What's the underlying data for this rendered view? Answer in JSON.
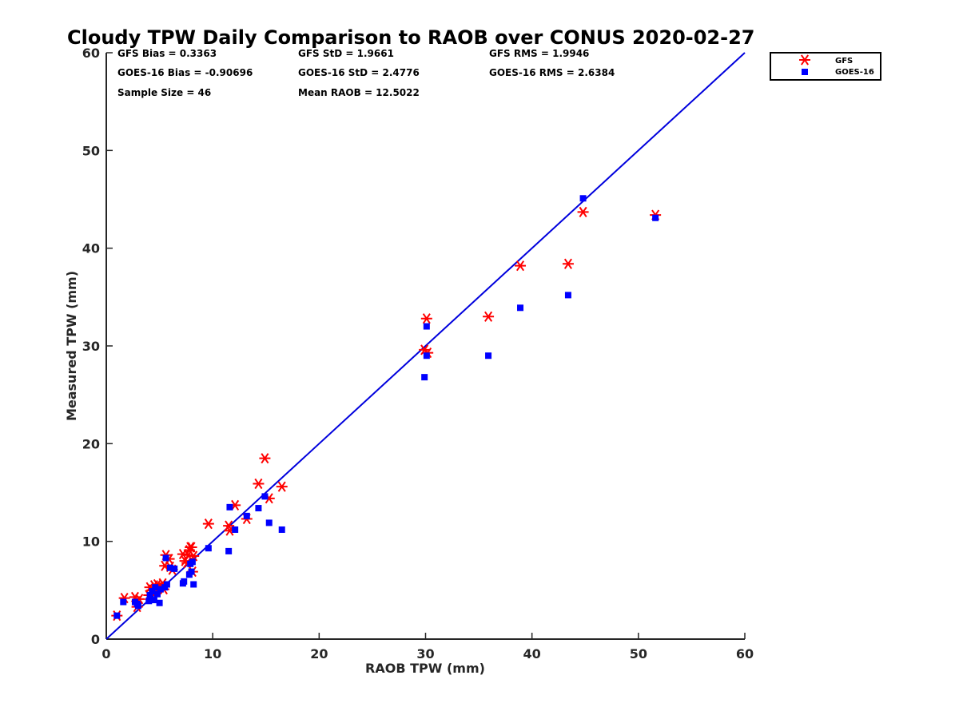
{
  "chart_data": {
    "type": "scatter",
    "title": "Cloudy TPW Daily Comparison to RAOB over CONUS 2020-02-27",
    "xlabel": "RAOB TPW (mm)",
    "ylabel": "Measured TPW (mm)",
    "xlim": [
      0,
      60
    ],
    "ylim": [
      0,
      60
    ],
    "xticks": [
      "0",
      "10",
      "20",
      "30",
      "40",
      "50",
      "60"
    ],
    "yticks": [
      "0",
      "10",
      "20",
      "30",
      "40",
      "50",
      "60"
    ],
    "grid": false,
    "legend_position": "top-right",
    "reference_line": {
      "x": [
        0,
        60
      ],
      "y": [
        0,
        60
      ],
      "color": "#0000dd"
    },
    "stats": [
      [
        "GFS Bias = 0.3363",
        "GFS StD = 1.9661",
        "GFS RMS = 1.9946"
      ],
      [
        "GOES-16 Bias = -0.90696",
        "GOES-16 StD = 2.4776",
        "GOES-16 RMS = 2.6384"
      ],
      [
        "Sample Size = 46",
        "Mean RAOB = 12.5022",
        ""
      ]
    ],
    "series": [
      {
        "name": "GFS",
        "marker": "asterisk",
        "color": "#ff0000",
        "points": [
          [
            1.0,
            2.4
          ],
          [
            1.7,
            4.2
          ],
          [
            2.7,
            4.3
          ],
          [
            2.9,
            3.3
          ],
          [
            3.1,
            4.1
          ],
          [
            4.0,
            4.5
          ],
          [
            4.1,
            5.3
          ],
          [
            4.3,
            5.0
          ],
          [
            4.5,
            5.5
          ],
          [
            4.8,
            5.6
          ],
          [
            5.0,
            5.4
          ],
          [
            5.3,
            5.7
          ],
          [
            5.4,
            5.1
          ],
          [
            5.5,
            7.5
          ],
          [
            5.6,
            8.6
          ],
          [
            5.9,
            8.2
          ],
          [
            6.0,
            7.4
          ],
          [
            6.2,
            7.1
          ],
          [
            7.2,
            8.7
          ],
          [
            7.4,
            8.0
          ],
          [
            7.6,
            7.8
          ],
          [
            7.7,
            8.6
          ],
          [
            7.8,
            9.1
          ],
          [
            7.9,
            9.4
          ],
          [
            8.0,
            9.4
          ],
          [
            8.1,
            6.9
          ],
          [
            8.2,
            8.5
          ],
          [
            9.6,
            11.8
          ],
          [
            11.5,
            11.6
          ],
          [
            11.6,
            11.1
          ],
          [
            12.1,
            13.7
          ],
          [
            13.2,
            12.3
          ],
          [
            14.3,
            15.9
          ],
          [
            14.9,
            18.5
          ],
          [
            15.3,
            14.4
          ],
          [
            16.5,
            15.6
          ],
          [
            29.9,
            29.6
          ],
          [
            30.1,
            32.8
          ],
          [
            30.2,
            29.3
          ],
          [
            35.9,
            33.0
          ],
          [
            38.9,
            38.2
          ],
          [
            43.4,
            38.4
          ],
          [
            44.8,
            43.7
          ],
          [
            51.6,
            43.4
          ]
        ]
      },
      {
        "name": "GOES-16",
        "marker": "square",
        "color": "#0000ff",
        "points": [
          [
            1.0,
            2.4
          ],
          [
            1.6,
            3.8
          ],
          [
            2.7,
            3.8
          ],
          [
            2.9,
            3.6
          ],
          [
            3.0,
            3.4
          ],
          [
            4.0,
            3.9
          ],
          [
            4.1,
            4.5
          ],
          [
            4.3,
            4.9
          ],
          [
            4.5,
            4.0
          ],
          [
            4.6,
            5.3
          ],
          [
            4.8,
            4.6
          ],
          [
            5.0,
            3.7
          ],
          [
            5.1,
            5.1
          ],
          [
            5.5,
            5.3
          ],
          [
            5.6,
            8.3
          ],
          [
            5.7,
            5.6
          ],
          [
            6.0,
            7.3
          ],
          [
            6.4,
            7.2
          ],
          [
            7.2,
            5.7
          ],
          [
            7.3,
            5.9
          ],
          [
            7.8,
            6.6
          ],
          [
            7.9,
            7.7
          ],
          [
            8.0,
            6.9
          ],
          [
            8.1,
            7.9
          ],
          [
            8.2,
            5.6
          ],
          [
            9.6,
            9.3
          ],
          [
            11.5,
            9.0
          ],
          [
            11.6,
            13.5
          ],
          [
            12.1,
            11.2
          ],
          [
            13.2,
            12.6
          ],
          [
            14.3,
            13.4
          ],
          [
            14.9,
            14.6
          ],
          [
            15.3,
            11.9
          ],
          [
            16.5,
            11.2
          ],
          [
            29.9,
            26.8
          ],
          [
            30.1,
            32.0
          ],
          [
            30.1,
            29.0
          ],
          [
            35.9,
            29.0
          ],
          [
            38.9,
            33.9
          ],
          [
            43.4,
            35.2
          ],
          [
            44.8,
            45.1
          ],
          [
            51.6,
            43.1
          ]
        ]
      }
    ]
  }
}
